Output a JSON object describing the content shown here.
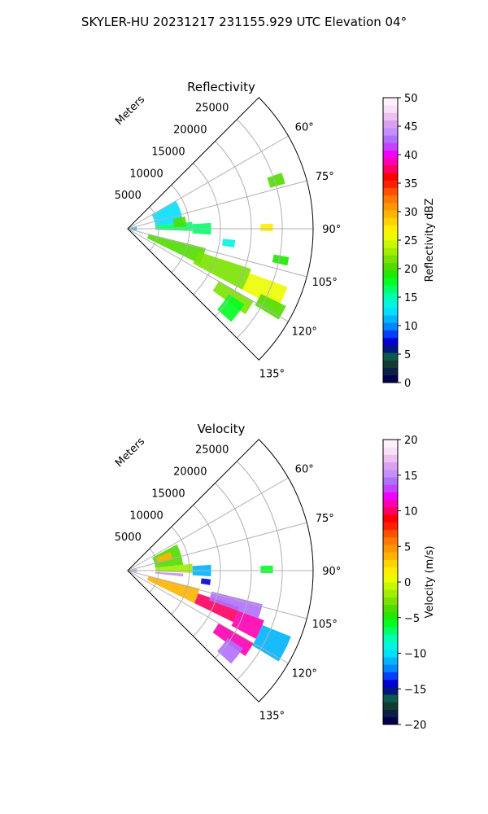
{
  "figure_title": "SKYLER-HU  20231217  231155.929 UTC Elevation 04°",
  "chart_data": [
    {
      "type": "heatmap",
      "title": "Reflectivity",
      "projection": "polar-sector",
      "range_label": "Meters",
      "range_ticks": [
        5000,
        10000,
        15000,
        20000,
        25000
      ],
      "range_max": 30000,
      "azimuth_range": [
        45,
        135
      ],
      "azimuth_ticks": [
        "60°",
        "75°",
        "90°",
        "105°",
        "120°",
        "135°"
      ],
      "azimuth_tick_values": [
        60,
        75,
        90,
        105,
        120,
        135
      ],
      "grid": true,
      "colorbar": {
        "label": "Reflectivity dBZ",
        "min": 0,
        "max": 50,
        "ticks": [
          "0",
          "5",
          "10",
          "15",
          "20",
          "25",
          "30",
          "35",
          "40",
          "45",
          "50"
        ],
        "tick_values": [
          0,
          5,
          10,
          15,
          20,
          25,
          30,
          35,
          40,
          45,
          50
        ],
        "colors": [
          "#00004c",
          "#0a2046",
          "#123a30",
          "#0a5a50",
          "#00187c",
          "#0000d8",
          "#0040ff",
          "#0086ff",
          "#00b4ff",
          "#00e0ff",
          "#00f6e0",
          "#00ffb0",
          "#00ff6a",
          "#00ff20",
          "#20e800",
          "#50dc00",
          "#7ae200",
          "#a0ee00",
          "#c8f800",
          "#ecfc00",
          "#ffee00",
          "#ffd200",
          "#ffb400",
          "#ff9600",
          "#ff7800",
          "#ff5000",
          "#ff2000",
          "#ff0000",
          "#ff0060",
          "#ff00b0",
          "#f000ff",
          "#c840ff",
          "#b070ff",
          "#c490ff",
          "#dca0f0",
          "#ecc0f0",
          "#f8e0f8",
          "#fff0fa"
        ]
      },
      "echoes": [
        {
          "az_from": 60,
          "az_to": 84,
          "r_from": 4500,
          "r_to": 9000,
          "value": 13
        },
        {
          "az_from": 84,
          "az_to": 92,
          "r_from": 4500,
          "r_to": 10500,
          "value": 16
        },
        {
          "az_from": 78,
          "az_to": 88,
          "r_from": 7500,
          "r_to": 9500,
          "value": 20
        },
        {
          "az_from": 86,
          "az_to": 94,
          "r_from": 10500,
          "r_to": 13500,
          "value": 17
        },
        {
          "az_from": 80,
          "az_to": 100,
          "r_from": 200,
          "r_to": 1500,
          "value": 11
        },
        {
          "az_from": 104,
          "az_to": 116,
          "r_from": 3500,
          "r_to": 13000,
          "value": 21
        },
        {
          "az_from": 108,
          "az_to": 118,
          "r_from": 12000,
          "r_to": 21000,
          "value": 22
        },
        {
          "az_from": 110,
          "az_to": 118,
          "r_from": 21000,
          "r_to": 27500,
          "value": 25
        },
        {
          "az_from": 116,
          "az_to": 121,
          "r_from": 24000,
          "r_to": 28500,
          "value": 21
        },
        {
          "az_from": 120,
          "az_to": 126,
          "r_from": 17000,
          "r_to": 23500,
          "value": 22
        },
        {
          "az_from": 123,
          "az_to": 132,
          "r_from": 19500,
          "r_to": 22500,
          "value": 18
        },
        {
          "az_from": 88,
          "az_to": 91,
          "r_from": 21500,
          "r_to": 23500,
          "value": 27
        },
        {
          "az_from": 70,
          "az_to": 74,
          "r_from": 24000,
          "r_to": 26500,
          "value": 20
        },
        {
          "az_from": 96,
          "az_to": 100,
          "r_from": 15500,
          "r_to": 17500,
          "value": 14
        },
        {
          "az_from": 100,
          "az_to": 103,
          "r_from": 24000,
          "r_to": 26500,
          "value": 19
        }
      ]
    },
    {
      "type": "heatmap",
      "title": "Velocity",
      "projection": "polar-sector",
      "range_label": "Meters",
      "range_ticks": [
        5000,
        10000,
        15000,
        20000,
        25000
      ],
      "range_max": 30000,
      "azimuth_range": [
        45,
        135
      ],
      "azimuth_ticks": [
        "60°",
        "75°",
        "90°",
        "105°",
        "120°",
        "135°"
      ],
      "azimuth_tick_values": [
        60,
        75,
        90,
        105,
        120,
        135
      ],
      "grid": true,
      "colorbar": {
        "label": "Velocity (m/s)",
        "min": -20,
        "max": 20,
        "ticks": [
          "−20",
          "−15",
          "−10",
          "−5",
          "0",
          "5",
          "10",
          "15",
          "20"
        ],
        "tick_values": [
          -20,
          -15,
          -10,
          -5,
          0,
          5,
          10,
          15,
          20
        ],
        "colors": [
          "#00004c",
          "#0a2046",
          "#123a30",
          "#0a5a50",
          "#00187c",
          "#0000d8",
          "#0040ff",
          "#0086ff",
          "#00b4ff",
          "#00e0ff",
          "#00f6e0",
          "#00ffb0",
          "#00ff6a",
          "#00ff20",
          "#20e800",
          "#50dc00",
          "#7ae200",
          "#a0ee00",
          "#c8f800",
          "#ecfc00",
          "#ffee00",
          "#ffd200",
          "#ffb400",
          "#ff9600",
          "#ff7800",
          "#ff5000",
          "#ff2000",
          "#ff0000",
          "#ff0060",
          "#ff00b0",
          "#f000ff",
          "#c840ff",
          "#b070ff",
          "#c490ff",
          "#dca0f0",
          "#ecc0f0",
          "#f8e0f8",
          "#fff0fa"
        ]
      },
      "echoes": [
        {
          "az_from": 62,
          "az_to": 84,
          "r_from": 4500,
          "r_to": 9000,
          "value": -4
        },
        {
          "az_from": 66,
          "az_to": 76,
          "r_from": 5000,
          "r_to": 7500,
          "value": 4
        },
        {
          "az_from": 84,
          "az_to": 92,
          "r_from": 4500,
          "r_to": 10500,
          "value": -2
        },
        {
          "az_from": 93,
          "az_to": 96,
          "r_from": 4500,
          "r_to": 9000,
          "value": 15
        },
        {
          "az_from": 86,
          "az_to": 94,
          "r_from": 10500,
          "r_to": 13500,
          "value": -11
        },
        {
          "az_from": 80,
          "az_to": 100,
          "r_from": 200,
          "r_to": 1500,
          "value": 15
        },
        {
          "az_from": 104,
          "az_to": 116,
          "r_from": 3500,
          "r_to": 12000,
          "value": 4
        },
        {
          "az_from": 108,
          "az_to": 116,
          "r_from": 12000,
          "r_to": 19000,
          "value": 10
        },
        {
          "az_from": 104,
          "az_to": 110,
          "r_from": 14000,
          "r_to": 22500,
          "value": 14
        },
        {
          "az_from": 110,
          "az_to": 118,
          "r_from": 19000,
          "r_to": 23500,
          "value": 11
        },
        {
          "az_from": 112,
          "az_to": 121,
          "r_from": 23500,
          "r_to": 28500,
          "value": -11
        },
        {
          "az_from": 120,
          "az_to": 126,
          "r_from": 17000,
          "r_to": 23500,
          "value": 11
        },
        {
          "az_from": 124,
          "az_to": 132,
          "r_from": 19500,
          "r_to": 22500,
          "value": 14
        },
        {
          "az_from": 88,
          "az_to": 91,
          "r_from": 21500,
          "r_to": 23500,
          "value": -6
        },
        {
          "az_from": 96,
          "az_to": 100,
          "r_from": 12000,
          "r_to": 13500,
          "value": -14
        }
      ]
    }
  ]
}
